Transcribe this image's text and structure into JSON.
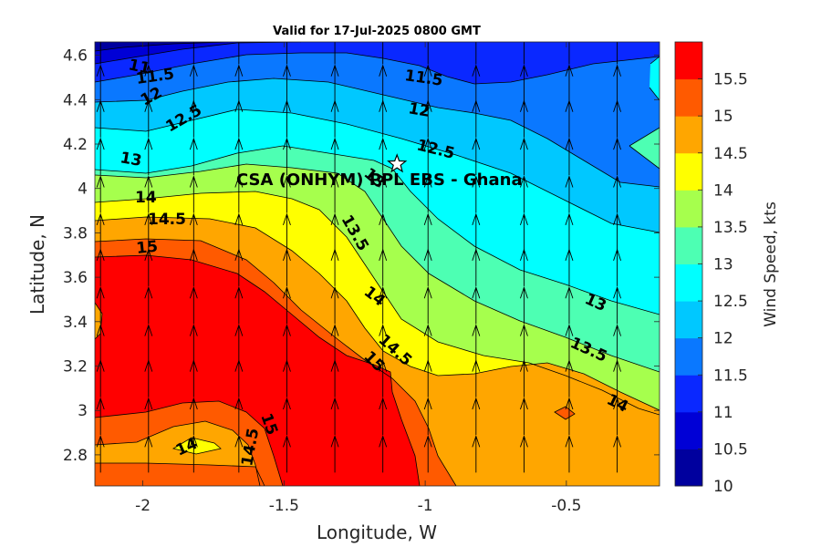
{
  "chart_data": {
    "type": "contour",
    "title": "Valid for 17-Jul-2025 0800 GMT",
    "xlabel": "Longitude, W",
    "ylabel": "Latitude, N",
    "colorbar_label": "Wind Speed, kts",
    "xlim": [
      -2.17,
      -0.17
    ],
    "ylim": [
      2.66,
      4.66
    ],
    "x_ticks": [
      -2,
      -1.5,
      -1,
      -0.5
    ],
    "x_tick_labels": [
      "-2",
      "-1.5",
      "-1",
      "-0.5"
    ],
    "y_ticks": [
      2.8,
      3,
      3.2,
      3.4,
      3.6,
      3.8,
      4,
      4.2,
      4.4,
      4.6
    ],
    "y_tick_labels": [
      "2.8",
      "3",
      "3.2",
      "3.4",
      "3.6",
      "3.8",
      "4",
      "4.2",
      "4.4",
      "4.6"
    ],
    "colorbar_levels": [
      10,
      10.5,
      11,
      11.5,
      12,
      12.5,
      13,
      13.5,
      14,
      14.5,
      15,
      15.5
    ],
    "colorbar_tick_labels": [
      "10",
      "10.5",
      "11",
      "11.5",
      "12",
      "12.5",
      "13",
      "13.5",
      "14",
      "14.5",
      "15",
      "15.5"
    ],
    "colorbar_colors": [
      "#00009e",
      "#0000d6",
      "#0a28ff",
      "#0a78ff",
      "#00c8ff",
      "#00ffff",
      "#4dffb3",
      "#a6ff4d",
      "#ffff00",
      "#ffa600",
      "#ff5a00",
      "#ff0000"
    ],
    "contour_labels": [
      "11",
      "11.5",
      "12",
      "12.5",
      "13",
      "14",
      "14.5",
      "15",
      "11.5",
      "12",
      "12.5",
      "13",
      "13.5",
      "14",
      "14.5",
      "15",
      "13",
      "13.5",
      "14",
      "14",
      "14.5",
      "15"
    ],
    "station": {
      "name": "CSA (ONHYM) PPL EBS  - Ghana",
      "lon": -1.1,
      "lat": 4.11,
      "marker": "star"
    },
    "wind_vectors": {
      "direction": "from south",
      "longitudes": [
        -2.15,
        -1.98,
        -1.82,
        -1.66,
        -1.49,
        -1.32,
        -1.15,
        -0.99,
        -0.82,
        -0.65,
        -0.49,
        -0.32
      ],
      "latitudes": [
        2.72,
        2.89,
        3.06,
        3.22,
        3.39,
        3.56,
        3.72,
        3.89,
        4.06,
        4.23,
        4.39,
        4.56
      ]
    },
    "grid": false
  }
}
